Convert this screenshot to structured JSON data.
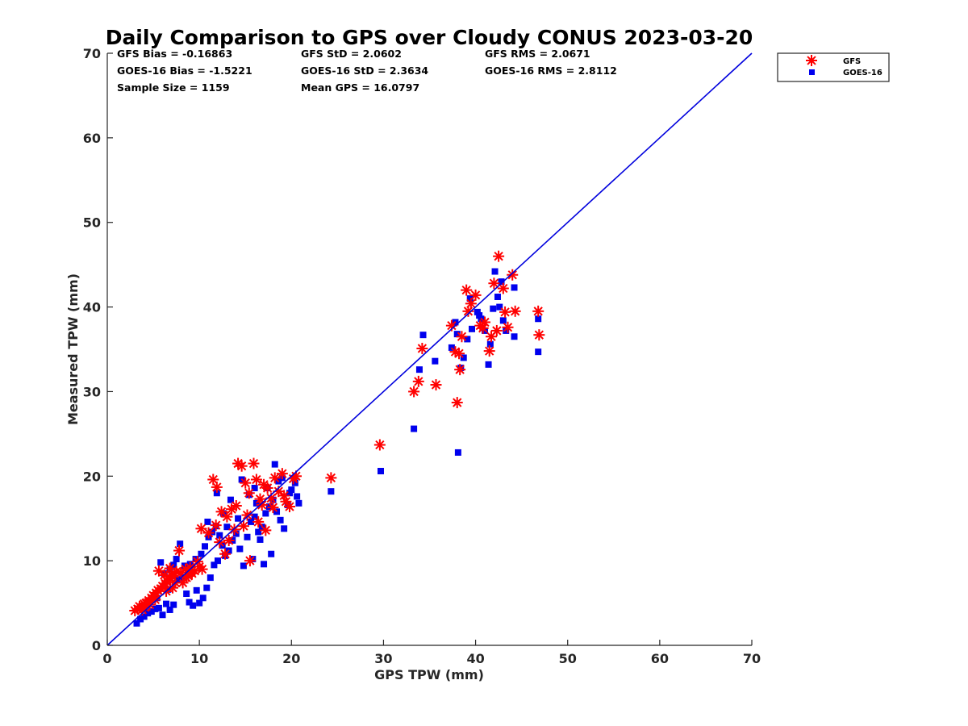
{
  "chart_data": {
    "type": "scatter",
    "title": "Daily Comparison to GPS over Cloudy CONUS 2023-03-20",
    "xlabel": "GPS TPW (mm)",
    "ylabel": "Measured TPW (mm)",
    "xlim": [
      0,
      70
    ],
    "ylim": [
      0,
      70
    ],
    "xticks": [
      "0",
      "10",
      "20",
      "30",
      "40",
      "50",
      "60",
      "70"
    ],
    "yticks": [
      "0",
      "10",
      "20",
      "30",
      "40",
      "50",
      "60",
      "70"
    ],
    "grid": false,
    "legend_position": "outside top-right",
    "stats": [
      [
        "GFS Bias = -0.16863",
        "GFS StD = 2.0602",
        "GFS RMS = 2.0671"
      ],
      [
        "GOES-16 Bias = -1.5221",
        "GOES-16 StD = 2.3634",
        "GOES-16 RMS = 2.8112"
      ],
      [
        "Sample Size = 1159",
        "Mean GPS = 16.0797",
        ""
      ]
    ],
    "reference_line": {
      "x": [
        0,
        70
      ],
      "y": [
        0,
        70
      ],
      "color": "#0000dd"
    },
    "series": [
      {
        "name": "GFS",
        "marker": "asterisk",
        "color": "#ff0000",
        "points": [
          [
            3.0,
            4.1
          ],
          [
            3.3,
            4.3
          ],
          [
            3.5,
            4.6
          ],
          [
            3.8,
            4.2
          ],
          [
            4.0,
            4.9
          ],
          [
            4.2,
            5.0
          ],
          [
            4.5,
            5.3
          ],
          [
            4.8,
            5.6
          ],
          [
            5.0,
            5.9
          ],
          [
            5.3,
            6.2
          ],
          [
            5.5,
            6.5
          ],
          [
            5.8,
            6.7
          ],
          [
            6.0,
            7.0
          ],
          [
            6.3,
            7.3
          ],
          [
            6.5,
            7.6
          ],
          [
            6.8,
            7.9
          ],
          [
            7.0,
            8.2
          ],
          [
            7.3,
            8.5
          ],
          [
            7.5,
            8.7
          ],
          [
            5.6,
            8.8
          ],
          [
            6.2,
            8.3
          ],
          [
            6.8,
            9.1
          ],
          [
            7.4,
            7.4
          ],
          [
            8.0,
            8.6
          ],
          [
            8.5,
            9.0
          ],
          [
            9.0,
            9.2
          ],
          [
            9.5,
            8.8
          ],
          [
            10.0,
            9.3
          ],
          [
            10.3,
            9.0
          ],
          [
            9.2,
            8.5
          ],
          [
            8.6,
            8.0
          ],
          [
            8.2,
            7.4
          ],
          [
            7.8,
            11.2
          ],
          [
            6.4,
            6.4
          ],
          [
            5.2,
            5.4
          ],
          [
            4.6,
            4.8
          ],
          [
            4.1,
            4.5
          ],
          [
            7.1,
            6.8
          ],
          [
            8.8,
            8.2
          ],
          [
            9.8,
            9.9
          ],
          [
            10.2,
            13.8
          ],
          [
            11.0,
            13.3
          ],
          [
            11.5,
            19.6
          ],
          [
            11.9,
            18.7
          ],
          [
            12.4,
            15.8
          ],
          [
            13.0,
            15.2
          ],
          [
            13.5,
            16.1
          ],
          [
            14.0,
            16.5
          ],
          [
            14.2,
            21.5
          ],
          [
            14.6,
            21.2
          ],
          [
            15.0,
            19.2
          ],
          [
            15.4,
            18.0
          ],
          [
            15.9,
            21.5
          ],
          [
            16.2,
            19.6
          ],
          [
            16.6,
            17.3
          ],
          [
            17.0,
            19.0
          ],
          [
            17.4,
            18.6
          ],
          [
            17.8,
            17.4
          ],
          [
            18.2,
            19.8
          ],
          [
            18.6,
            18.2
          ],
          [
            19.0,
            20.3
          ],
          [
            19.4,
            17.0
          ],
          [
            19.8,
            16.4
          ],
          [
            20.2,
            19.7
          ],
          [
            20.5,
            20.0
          ],
          [
            18.0,
            16.3
          ],
          [
            16.8,
            16.6
          ],
          [
            15.5,
            10.0
          ],
          [
            14.8,
            14.1
          ],
          [
            13.2,
            12.4
          ],
          [
            12.8,
            10.8
          ],
          [
            11.8,
            14.2
          ],
          [
            12.2,
            12.2
          ],
          [
            13.8,
            13.7
          ],
          [
            15.2,
            15.4
          ],
          [
            16.4,
            14.6
          ],
          [
            17.2,
            13.6
          ],
          [
            19.2,
            17.7
          ],
          [
            24.3,
            19.8
          ],
          [
            29.6,
            23.7
          ],
          [
            33.3,
            30.0
          ],
          [
            33.8,
            31.2
          ],
          [
            34.2,
            35.1
          ],
          [
            35.7,
            30.8
          ],
          [
            37.4,
            37.8
          ],
          [
            37.8,
            34.7
          ],
          [
            38.0,
            28.7
          ],
          [
            38.2,
            34.5
          ],
          [
            38.3,
            32.6
          ],
          [
            38.5,
            36.5
          ],
          [
            39.0,
            42.0
          ],
          [
            39.2,
            39.5
          ],
          [
            39.5,
            40.4
          ],
          [
            40.0,
            41.4
          ],
          [
            40.5,
            37.8
          ],
          [
            41.0,
            38.2
          ],
          [
            41.5,
            34.8
          ],
          [
            41.7,
            36.5
          ],
          [
            42.0,
            42.8
          ],
          [
            42.3,
            37.2
          ],
          [
            42.5,
            46.0
          ],
          [
            43.0,
            42.2
          ],
          [
            43.2,
            39.4
          ],
          [
            43.5,
            37.6
          ],
          [
            44.0,
            43.8
          ],
          [
            44.3,
            39.5
          ],
          [
            46.8,
            39.5
          ],
          [
            46.9,
            36.7
          ],
          [
            40.8,
            37.5
          ]
        ]
      },
      {
        "name": "GOES-16",
        "marker": "square",
        "color": "#0000ee",
        "points": [
          [
            3.2,
            2.6
          ],
          [
            3.6,
            3.1
          ],
          [
            4.0,
            3.4
          ],
          [
            4.4,
            3.8
          ],
          [
            4.8,
            4.0
          ],
          [
            5.2,
            4.3
          ],
          [
            5.6,
            4.4
          ],
          [
            6.0,
            3.6
          ],
          [
            6.4,
            4.9
          ],
          [
            6.8,
            4.2
          ],
          [
            7.2,
            4.8
          ],
          [
            5.8,
            9.8
          ],
          [
            6.2,
            8.5
          ],
          [
            6.8,
            9.0
          ],
          [
            7.2,
            9.5
          ],
          [
            7.5,
            10.2
          ],
          [
            7.9,
            12.0
          ],
          [
            8.2,
            8.0
          ],
          [
            8.6,
            6.1
          ],
          [
            8.9,
            5.1
          ],
          [
            9.3,
            4.7
          ],
          [
            9.7,
            6.5
          ],
          [
            10.0,
            5.0
          ],
          [
            10.4,
            5.6
          ],
          [
            10.8,
            6.8
          ],
          [
            11.2,
            8.0
          ],
          [
            11.6,
            9.5
          ],
          [
            10.6,
            11.7
          ],
          [
            11.0,
            12.8
          ],
          [
            11.4,
            13.4
          ],
          [
            11.8,
            14.1
          ],
          [
            12.2,
            13.0
          ],
          [
            12.5,
            11.8
          ],
          [
            12.8,
            10.6
          ],
          [
            13.2,
            11.2
          ],
          [
            13.6,
            12.4
          ],
          [
            14.0,
            13.2
          ],
          [
            14.4,
            11.4
          ],
          [
            14.8,
            9.4
          ],
          [
            15.2,
            12.8
          ],
          [
            15.6,
            14.6
          ],
          [
            16.0,
            15.2
          ],
          [
            16.4,
            13.4
          ],
          [
            16.8,
            14.0
          ],
          [
            17.2,
            15.6
          ],
          [
            17.6,
            16.4
          ],
          [
            18.0,
            17.2
          ],
          [
            18.4,
            15.8
          ],
          [
            18.8,
            14.8
          ],
          [
            19.2,
            13.8
          ],
          [
            19.6,
            16.6
          ],
          [
            20.0,
            18.4
          ],
          [
            20.4,
            19.2
          ],
          [
            20.6,
            17.6
          ],
          [
            19.0,
            19.8
          ],
          [
            18.2,
            21.4
          ],
          [
            17.4,
            18.6
          ],
          [
            16.6,
            12.5
          ],
          [
            15.8,
            10.2
          ],
          [
            17.0,
            9.6
          ],
          [
            17.8,
            10.8
          ],
          [
            13.4,
            17.2
          ],
          [
            12.6,
            15.6
          ],
          [
            11.9,
            18.0
          ],
          [
            14.6,
            19.6
          ],
          [
            15.4,
            17.8
          ],
          [
            16.2,
            16.8
          ],
          [
            14.2,
            15.0
          ],
          [
            13.0,
            14.0
          ],
          [
            12.0,
            10.0
          ],
          [
            10.9,
            14.6
          ],
          [
            9.6,
            10.2
          ],
          [
            8.4,
            9.4
          ],
          [
            7.6,
            7.8
          ],
          [
            6.6,
            6.6
          ],
          [
            5.4,
            5.6
          ],
          [
            4.6,
            5.2
          ],
          [
            9.0,
            9.6
          ],
          [
            10.2,
            10.8
          ],
          [
            16.0,
            18.6
          ],
          [
            18.6,
            19.4
          ],
          [
            19.8,
            18.0
          ],
          [
            20.8,
            16.8
          ],
          [
            24.3,
            18.2
          ],
          [
            29.7,
            20.6
          ],
          [
            33.3,
            25.6
          ],
          [
            33.9,
            32.6
          ],
          [
            34.3,
            36.7
          ],
          [
            35.6,
            33.6
          ],
          [
            37.4,
            35.2
          ],
          [
            37.8,
            38.2
          ],
          [
            38.0,
            36.8
          ],
          [
            38.1,
            22.8
          ],
          [
            38.4,
            32.8
          ],
          [
            38.7,
            34.0
          ],
          [
            39.1,
            36.2
          ],
          [
            39.4,
            41.0
          ],
          [
            39.6,
            37.4
          ],
          [
            40.2,
            39.4
          ],
          [
            40.6,
            38.6
          ],
          [
            41.0,
            37.2
          ],
          [
            41.4,
            33.2
          ],
          [
            41.6,
            35.6
          ],
          [
            41.9,
            39.8
          ],
          [
            42.1,
            44.2
          ],
          [
            42.4,
            41.2
          ],
          [
            42.8,
            43.0
          ],
          [
            43.0,
            38.4
          ],
          [
            43.3,
            37.2
          ],
          [
            44.2,
            42.3
          ],
          [
            44.2,
            36.5
          ],
          [
            46.8,
            38.6
          ],
          [
            46.8,
            34.7
          ],
          [
            42.6,
            40.0
          ],
          [
            40.4,
            39.0
          ]
        ]
      }
    ]
  }
}
